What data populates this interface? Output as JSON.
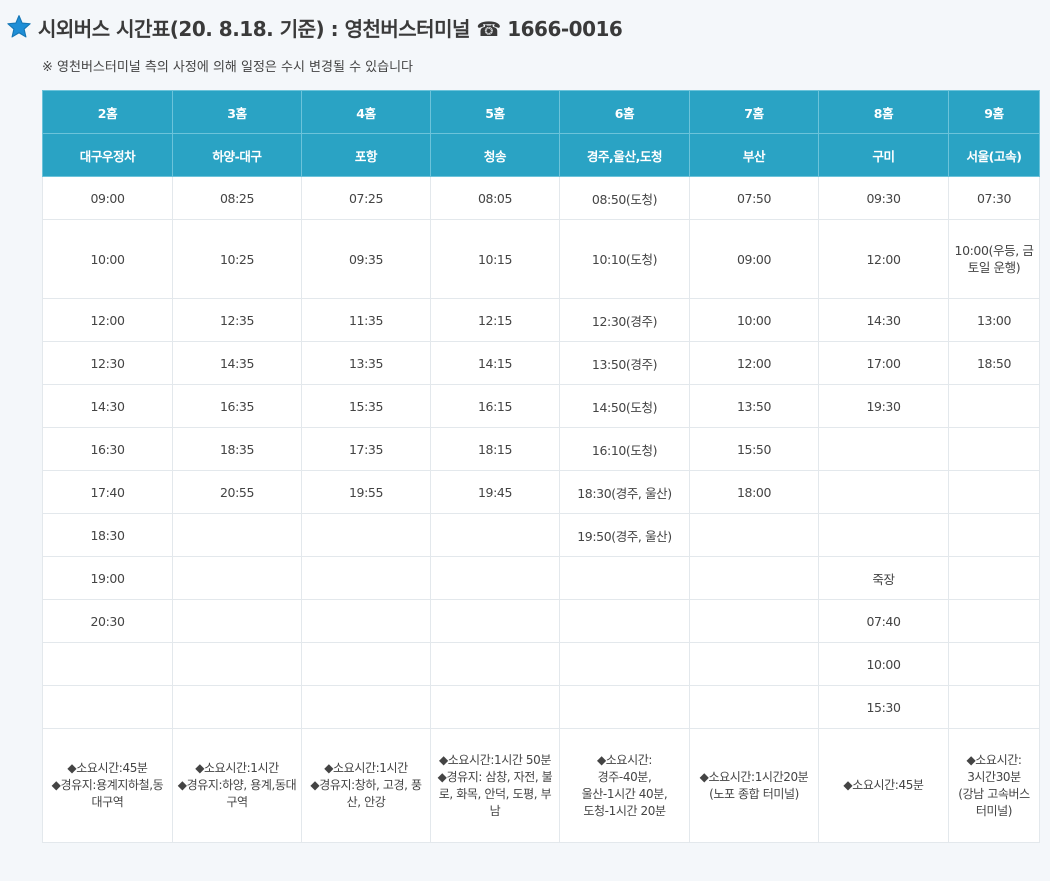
{
  "header": {
    "title": "시외버스 시간표(20. 8.18. 기준) : 영천버스터미널 ☎ 1666-0016",
    "notice": "※ 영천버스터미널 측의 사정에 의해 일정은 수시 변경될 수 있습니다"
  },
  "table": {
    "homes": [
      "2홈",
      "3홈",
      "4홈",
      "5홈",
      "6홈",
      "7홈",
      "8홈",
      "9홈"
    ],
    "destinations": [
      "대구우정차",
      "하양-대구",
      "포항",
      "청송",
      "경주,울산,도청",
      "부산",
      "구미",
      "서울(고속)"
    ],
    "rows": [
      [
        "09:00",
        "08:25",
        "07:25",
        "08:05",
        "08:50(도청)",
        "07:50",
        "09:30",
        "07:30"
      ],
      [
        "10:00",
        "10:25",
        "09:35",
        "10:15",
        "10:10(도청)",
        "09:00",
        "12:00",
        "10:00(우등, 금토일 운행)"
      ],
      [
        "12:00",
        "12:35",
        "11:35",
        "12:15",
        "12:30(경주)",
        "10:00",
        "14:30",
        "13:00"
      ],
      [
        "12:30",
        "14:35",
        "13:35",
        "14:15",
        "13:50(경주)",
        "12:00",
        "17:00",
        "18:50"
      ],
      [
        "14:30",
        "16:35",
        "15:35",
        "16:15",
        "14:50(도청)",
        "13:50",
        "19:30",
        ""
      ],
      [
        "16:30",
        "18:35",
        "17:35",
        "18:15",
        "16:10(도청)",
        "15:50",
        "",
        ""
      ],
      [
        "17:40",
        "20:55",
        "19:55",
        "19:45",
        "18:30(경주, 울산)",
        "18:00",
        "",
        ""
      ],
      [
        "18:30",
        "",
        "",
        "",
        "19:50(경주, 울산)",
        "",
        "",
        ""
      ],
      [
        "19:00",
        "",
        "",
        "",
        "",
        "",
        "죽장",
        ""
      ],
      [
        "20:30",
        "",
        "",
        "",
        "",
        "",
        "07:40",
        ""
      ],
      [
        "",
        "",
        "",
        "",
        "",
        "",
        "10:00",
        ""
      ],
      [
        "",
        "",
        "",
        "",
        "",
        "",
        "15:30",
        ""
      ]
    ],
    "notes": [
      "◆소요시간:45분\n◆경유지:용계지하철,동대구역",
      "◆소요시간:1시간\n◆경유지:하양, 용계,동대구역",
      "◆소요시간:1시간\n◆경유지:창하, 고경, 풍산, 안강",
      "◆소요시간:1시간 50분\n◆경유지: 삼창, 자전, 불로, 화목, 안덕, 도평, 부남",
      "◆소요시간:\n경주-40분,\n울산-1시간 40분,\n도청-1시간 20분",
      "◆소요시간:1시간20분\n(노포 종합 터미널)",
      "◆소요시간:45분",
      "◆소요시간:\n3시간30분\n(강남 고속버스터미널)"
    ]
  }
}
